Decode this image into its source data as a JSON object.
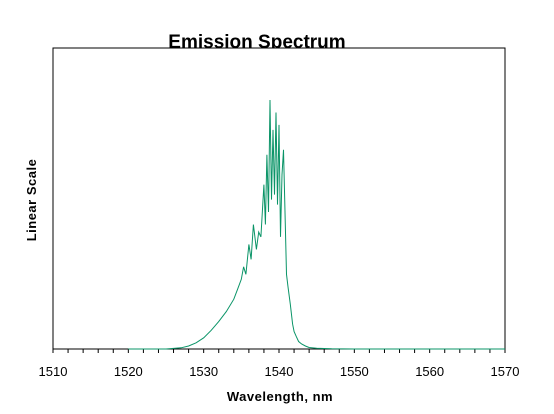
{
  "chart_data": {
    "type": "line",
    "title": "Emission Spectrum",
    "xlabel": "Wavelength, nm",
    "ylabel": "Linear Scale",
    "xlim": [
      1510,
      1570
    ],
    "ylim": [
      0,
      1
    ],
    "xticks": [
      1510,
      1520,
      1530,
      1540,
      1550,
      1560,
      1570
    ],
    "grid": false,
    "legend": "none",
    "series": [
      {
        "color": "#0a9467",
        "x": [
          1520,
          1525,
          1527,
          1528,
          1529,
          1530,
          1531,
          1532,
          1533,
          1534,
          1534.5,
          1535,
          1535.3,
          1535.6,
          1536,
          1536.3,
          1536.6,
          1537,
          1537.3,
          1537.6,
          1538,
          1538.2,
          1538.4,
          1538.6,
          1538.8,
          1539,
          1539.2,
          1539.4,
          1539.6,
          1539.8,
          1540,
          1540.2,
          1540.4,
          1540.6,
          1540.8,
          1541,
          1541.2,
          1541.5,
          1541.8,
          1542,
          1542.3,
          1542.6,
          1543,
          1543.5,
          1544,
          1545,
          1547,
          1550,
          1560,
          1570
        ],
        "y": [
          0.0,
          0.0,
          0.005,
          0.012,
          0.025,
          0.045,
          0.075,
          0.11,
          0.15,
          0.2,
          0.24,
          0.28,
          0.33,
          0.3,
          0.42,
          0.36,
          0.5,
          0.4,
          0.47,
          0.45,
          0.66,
          0.5,
          0.78,
          0.55,
          1.0,
          0.6,
          0.88,
          0.62,
          0.95,
          0.58,
          0.9,
          0.45,
          0.7,
          0.8,
          0.55,
          0.3,
          0.25,
          0.18,
          0.1,
          0.07,
          0.05,
          0.03,
          0.02,
          0.012,
          0.006,
          0.003,
          0.001,
          0.0,
          0.0,
          0.0
        ]
      }
    ]
  }
}
